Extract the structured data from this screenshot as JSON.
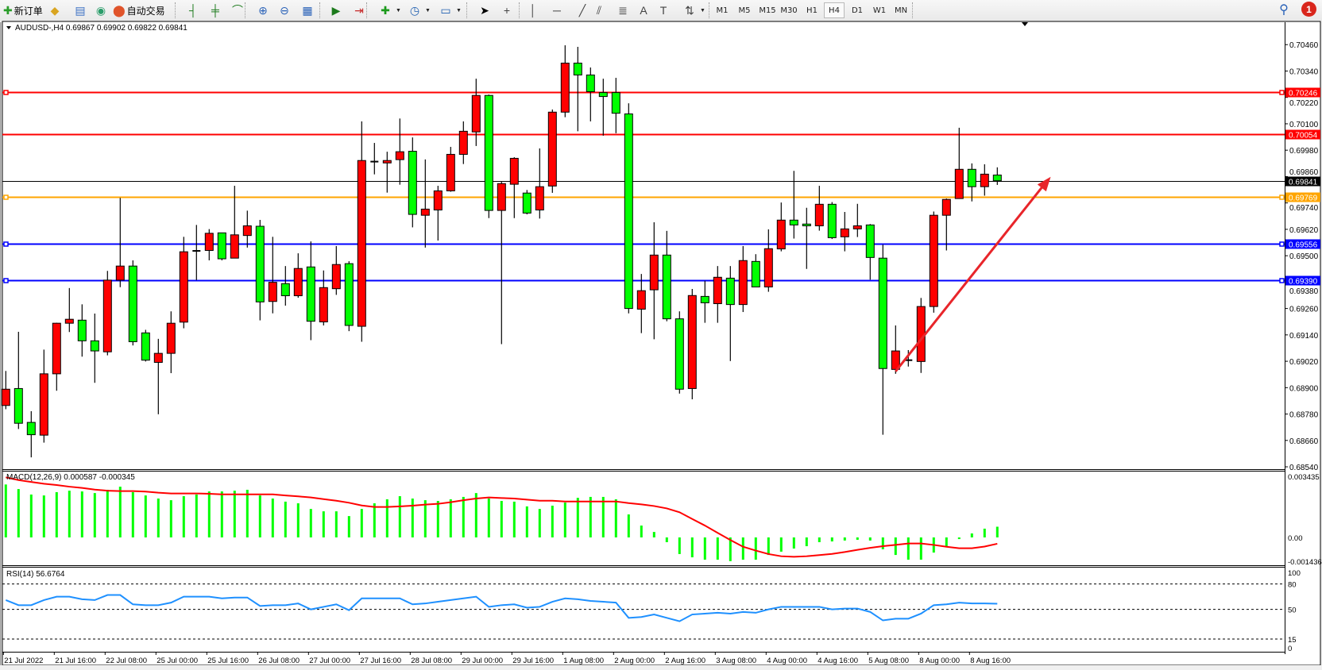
{
  "toolbar": {
    "items": [
      {
        "kind": "icon",
        "icon": "new-order-icon",
        "label": "新订单"
      },
      {
        "kind": "icon",
        "icon": "gold-bar-icon"
      },
      {
        "kind": "icon",
        "icon": "navigator-icon"
      },
      {
        "kind": "icon",
        "icon": "signal-icon"
      },
      {
        "kind": "icon",
        "icon": "auto-trading-icon",
        "label": "自动交易"
      },
      {
        "kind": "sep"
      },
      {
        "kind": "icon",
        "icon": "bar-chart-icon"
      },
      {
        "kind": "icon",
        "icon": "candlestick-chart-icon"
      },
      {
        "kind": "icon",
        "icon": "line-chart-icon"
      },
      {
        "kind": "sep"
      },
      {
        "kind": "icon",
        "icon": "zoom-in-icon"
      },
      {
        "kind": "icon",
        "icon": "zoom-out-icon"
      },
      {
        "kind": "icon",
        "icon": "tile-windows-icon"
      },
      {
        "kind": "sep"
      },
      {
        "kind": "icon",
        "icon": "auto-scroll-icon"
      },
      {
        "kind": "icon",
        "icon": "chart-shift-icon"
      },
      {
        "kind": "sep"
      },
      {
        "kind": "icon",
        "icon": "add-indicator-icon",
        "dropdown": true
      },
      {
        "kind": "icon",
        "icon": "periods-clock-icon",
        "dropdown": true
      },
      {
        "kind": "icon",
        "icon": "templates-icon",
        "dropdown": true
      },
      {
        "kind": "sep"
      },
      {
        "kind": "icon",
        "icon": "cursor-icon"
      },
      {
        "kind": "icon",
        "icon": "crosshair-icon"
      },
      {
        "kind": "sep"
      },
      {
        "kind": "icon",
        "icon": "vertical-line-icon"
      },
      {
        "kind": "icon",
        "icon": "horizontal-line-icon"
      },
      {
        "kind": "icon",
        "icon": "trendline-icon"
      },
      {
        "kind": "icon",
        "icon": "equidistant-channel-icon"
      },
      {
        "kind": "icon",
        "icon": "fibonacci-icon"
      },
      {
        "kind": "icon",
        "icon": "text-icon"
      },
      {
        "kind": "icon",
        "icon": "text-label-icon"
      },
      {
        "kind": "icon",
        "icon": "arrows-icon",
        "dropdown": true
      },
      {
        "kind": "sep"
      }
    ],
    "timeframes": [
      "M1",
      "M5",
      "M15",
      "M30",
      "H1",
      "H4",
      "D1",
      "W1",
      "MN"
    ],
    "active_timeframe": "H4",
    "notification_count": "1"
  },
  "chart": {
    "header": "AUDUSD-,H4  0.69867 0.69902 0.69822 0.69841",
    "colors": {
      "up": "#ff0000",
      "down": "#00ff00",
      "wick": "#000000",
      "macd_hist": "#00ff00",
      "macd_signal": "#ff0000",
      "rsi": "#1e90ff",
      "arrow": "#e8252a"
    },
    "horizontal_lines": [
      {
        "price": "0.70246",
        "value": 0.70246,
        "color": "#ff0000",
        "marker": true,
        "text_color": "#ffffff"
      },
      {
        "price": "0.70054",
        "value": 0.70054,
        "color": "#ff0000",
        "marker": false,
        "text_color": "#ffffff"
      },
      {
        "price": "0.69841",
        "value": 0.69841,
        "color": "#000000",
        "marker": false,
        "thin": true,
        "text_color": "#ffffff"
      },
      {
        "price": "0.69769",
        "value": 0.69769,
        "color": "#ffa500",
        "marker": true,
        "text_color": "#ffffff"
      },
      {
        "price": "0.69556",
        "value": 0.69556,
        "color": "#0000ff",
        "marker": true,
        "text_color": "#ffffff"
      },
      {
        "price": "0.69390",
        "value": 0.6939,
        "color": "#0000ff",
        "marker": true,
        "text_color": "#ffffff"
      }
    ],
    "arrow": {
      "from_bar": 71,
      "from_price": 0.68974,
      "to_bar": 83.2,
      "to_price": 0.69859
    }
  },
  "chart_data": [
    {
      "type": "candlestick",
      "symbol": "AUDUSD-",
      "timeframe": "H4",
      "ylim": [
        0.6854,
        0.7046
      ],
      "yticks": [
        "0.70460",
        "0.70340",
        "0.70220",
        "0.70100",
        "0.69980",
        "0.69860",
        "0.69740",
        "0.69620",
        "0.69500",
        "0.69380",
        "0.69260",
        "0.69140",
        "0.69020",
        "0.68900",
        "0.68780",
        "0.68660",
        "0.68540"
      ],
      "xticks": [
        "21 Jul 2022",
        "21 Jul 16:00",
        "22 Jul 08:00",
        "25 Jul 00:00",
        "25 Jul 16:00",
        "26 Jul 08:00",
        "27 Jul 00:00",
        "27 Jul 16:00",
        "28 Jul 08:00",
        "29 Jul 00:00",
        "29 Jul 16:00",
        "1 Aug 08:00",
        "2 Aug 00:00",
        "2 Aug 16:00",
        "3 Aug 08:00",
        "4 Aug 00:00",
        "4 Aug 16:00",
        "5 Aug 08:00",
        "8 Aug 00:00",
        "8 Aug 16:00"
      ],
      "ohlc": [
        [
          0.68819,
          0.68976,
          0.68802,
          0.68893
        ],
        [
          0.68896,
          0.69154,
          0.68712,
          0.68738
        ],
        [
          0.68742,
          0.68793,
          0.68583,
          0.68686
        ],
        [
          0.68684,
          0.69073,
          0.6865,
          0.68963
        ],
        [
          0.68963,
          0.69195,
          0.68886,
          0.69193
        ],
        [
          0.69193,
          0.69353,
          0.69153,
          0.69211
        ],
        [
          0.69207,
          0.69279,
          0.69041,
          0.69113
        ],
        [
          0.69113,
          0.69237,
          0.68922,
          0.69067
        ],
        [
          0.69063,
          0.69431,
          0.69047,
          0.69389
        ],
        [
          0.69389,
          0.69763,
          0.69357,
          0.69453
        ],
        [
          0.69453,
          0.69479,
          0.69092,
          0.69109
        ],
        [
          0.69149,
          0.69163,
          0.69019,
          0.69025
        ],
        [
          0.69015,
          0.69122,
          0.68779,
          0.69056
        ],
        [
          0.69056,
          0.69247,
          0.68966,
          0.69193
        ],
        [
          0.69198,
          0.69586,
          0.6917,
          0.69518
        ],
        [
          0.69522,
          0.6964,
          0.69389,
          0.69522
        ],
        [
          0.69524,
          0.69621,
          0.69479,
          0.69602
        ],
        [
          0.69604,
          0.69604,
          0.69479,
          0.69486
        ],
        [
          0.69489,
          0.69818,
          0.69489,
          0.69595
        ],
        [
          0.69592,
          0.69705,
          0.69537,
          0.69636
        ],
        [
          0.69634,
          0.69663,
          0.69206,
          0.6929
        ],
        [
          0.69292,
          0.69586,
          0.69238,
          0.69379
        ],
        [
          0.69373,
          0.69453,
          0.69273,
          0.69318
        ],
        [
          0.69318,
          0.69511,
          0.69309,
          0.69442
        ],
        [
          0.69449,
          0.69565,
          0.69116,
          0.69202
        ],
        [
          0.69199,
          0.69433,
          0.69183,
          0.69355
        ],
        [
          0.6935,
          0.69544,
          0.69322,
          0.6946
        ],
        [
          0.69464,
          0.69475,
          0.69157,
          0.69183
        ],
        [
          0.69179,
          0.70111,
          0.69109,
          0.69933
        ],
        [
          0.69928,
          0.70013,
          0.6987,
          0.69928
        ],
        [
          0.69922,
          0.69973,
          0.69787,
          0.69933
        ],
        [
          0.69937,
          0.70124,
          0.69823,
          0.69973
        ],
        [
          0.69975,
          0.70038,
          0.69629,
          0.69688
        ],
        [
          0.69684,
          0.69938,
          0.69537,
          0.69712
        ],
        [
          0.69708,
          0.69818,
          0.69569,
          0.69795
        ],
        [
          0.69795,
          0.69995,
          0.69791,
          0.69961
        ],
        [
          0.69961,
          0.70111,
          0.69917,
          0.70066
        ],
        [
          0.70063,
          0.70305,
          0.69999,
          0.70229
        ],
        [
          0.70229,
          0.70233,
          0.69671,
          0.69706
        ],
        [
          0.69706,
          0.69836,
          0.69098,
          0.69828
        ],
        [
          0.69825,
          0.69948,
          0.69671,
          0.69943
        ],
        [
          0.69785,
          0.69799,
          0.69688,
          0.69694
        ],
        [
          0.69708,
          0.69988,
          0.69669,
          0.69814
        ],
        [
          0.69817,
          0.70165,
          0.69786,
          0.70153
        ],
        [
          0.70153,
          0.70457,
          0.7013,
          0.70376
        ],
        [
          0.70376,
          0.7045,
          0.70066,
          0.70322
        ],
        [
          0.70322,
          0.70356,
          0.70111,
          0.70246
        ],
        [
          0.70242,
          0.70305,
          0.70046,
          0.70224
        ],
        [
          0.70242,
          0.70309,
          0.70057,
          0.70148
        ],
        [
          0.70145,
          0.70193,
          0.69238,
          0.6926
        ],
        [
          0.69257,
          0.69417,
          0.69148,
          0.69341
        ],
        [
          0.69345,
          0.69652,
          0.6912,
          0.69503
        ],
        [
          0.69503,
          0.69613,
          0.69202,
          0.69213
        ],
        [
          0.69213,
          0.69247,
          0.68873,
          0.68893
        ],
        [
          0.68896,
          0.69349,
          0.68847,
          0.69319
        ],
        [
          0.69315,
          0.69386,
          0.69195,
          0.69286
        ],
        [
          0.69282,
          0.69453,
          0.69195,
          0.69402
        ],
        [
          0.69398,
          0.69453,
          0.69021,
          0.69278
        ],
        [
          0.69278,
          0.69544,
          0.69244,
          0.69478
        ],
        [
          0.69474,
          0.69507,
          0.69358,
          0.69358
        ],
        [
          0.69358,
          0.6962,
          0.69336,
          0.69532
        ],
        [
          0.69531,
          0.69742,
          0.6952,
          0.69662
        ],
        [
          0.69662,
          0.69886,
          0.69578,
          0.6964
        ],
        [
          0.69644,
          0.69718,
          0.6944,
          0.69636
        ],
        [
          0.69636,
          0.69818,
          0.69614,
          0.69734
        ],
        [
          0.69734,
          0.69744,
          0.69576,
          0.69582
        ],
        [
          0.69586,
          0.69699,
          0.6952,
          0.69622
        ],
        [
          0.69622,
          0.69736,
          0.69585,
          0.69636
        ],
        [
          0.6964,
          0.69644,
          0.69391,
          0.69492
        ],
        [
          0.69489,
          0.6955,
          0.68686,
          0.68987
        ],
        [
          0.68983,
          0.69183,
          0.68963,
          0.69067
        ],
        [
          0.69025,
          0.69071,
          0.68996,
          0.69025
        ],
        [
          0.69019,
          0.69308,
          0.68967,
          0.69269
        ],
        [
          0.69269,
          0.69701,
          0.69241,
          0.69684
        ],
        [
          0.69684,
          0.6976,
          0.69524,
          0.69756
        ],
        [
          0.6976,
          0.70082,
          0.6976,
          0.69893
        ],
        [
          0.69893,
          0.6992,
          0.69747,
          0.69814
        ],
        [
          0.69814,
          0.69916,
          0.69773,
          0.69871
        ],
        [
          0.69867,
          0.69902,
          0.69822,
          0.69841
        ]
      ]
    },
    {
      "type": "bar+line",
      "label": "MACD(12,26,9) 0.000587 -0.000345",
      "ylim": [
        -0.001436,
        0.003435
      ],
      "yticks": [
        "0.003435",
        "0.00",
        "-0.001436"
      ],
      "histogram": [
        0.0029,
        0.00265,
        0.00235,
        0.0023,
        0.00248,
        0.00256,
        0.00252,
        0.00243,
        0.00261,
        0.00278,
        0.00248,
        0.0023,
        0.00213,
        0.00204,
        0.00226,
        0.00235,
        0.00252,
        0.00252,
        0.00256,
        0.00261,
        0.0023,
        0.00213,
        0.00196,
        0.00187,
        0.00156,
        0.00143,
        0.00143,
        0.00117,
        0.00156,
        0.00187,
        0.00209,
        0.00226,
        0.00213,
        0.00204,
        0.002,
        0.00209,
        0.00222,
        0.00243,
        0.00213,
        0.002,
        0.00196,
        0.0017,
        0.00156,
        0.00174,
        0.00191,
        0.00217,
        0.00222,
        0.00222,
        0.00209,
        0.00126,
        0.00065,
        0.0003,
        -0.00026,
        -0.00091,
        -0.00109,
        -0.00122,
        -0.00122,
        -0.0013,
        -0.00122,
        -0.00122,
        -0.00096,
        -0.00078,
        -0.00061,
        -0.00048,
        -0.00026,
        -0.00022,
        -0.00017,
        -0.00013,
        -0.00017,
        -0.00065,
        -0.00096,
        -0.00122,
        -0.00122,
        -0.00083,
        -0.00048,
        -9e-05,
        0.00022,
        0.00048,
        0.000587
      ],
      "signal": [
        0.00329,
        0.00314,
        0.00304,
        0.00294,
        0.00287,
        0.00278,
        0.00271,
        0.00262,
        0.00256,
        0.00254,
        0.00254,
        0.00251,
        0.00245,
        0.00241,
        0.00241,
        0.00241,
        0.00239,
        0.00236,
        0.00236,
        0.00236,
        0.00236,
        0.00236,
        0.0023,
        0.00225,
        0.00219,
        0.0021,
        0.00201,
        0.0019,
        0.00175,
        0.00167,
        0.00167,
        0.0017,
        0.00174,
        0.0018,
        0.00184,
        0.00193,
        0.00204,
        0.00213,
        0.00219,
        0.00216,
        0.00213,
        0.00207,
        0.00201,
        0.00201,
        0.00197,
        0.00197,
        0.00197,
        0.00197,
        0.00197,
        0.00188,
        0.00181,
        0.00172,
        0.00159,
        0.00138,
        0.00101,
        0.00065,
        0.00025,
        -0.00014,
        -0.00051,
        -0.00072,
        -0.00091,
        -0.00103,
        -0.00106,
        -0.00103,
        -0.00097,
        -0.0009,
        -0.0008,
        -0.00068,
        -0.00057,
        -0.00048,
        -0.00041,
        -0.00033,
        -0.00033,
        -0.00041,
        -0.00051,
        -0.00059,
        -0.00059,
        -0.0005,
        -0.000345
      ]
    },
    {
      "type": "line",
      "label": "RSI(14) 56.6764",
      "ylim": [
        0,
        100
      ],
      "yticks": [
        "100",
        "80",
        "50",
        "15",
        "0"
      ],
      "levels": [
        80,
        50,
        15
      ],
      "values": [
        61,
        55,
        55,
        61,
        65,
        65,
        62,
        61,
        67,
        67,
        56,
        55,
        55,
        58,
        65,
        65,
        65,
        63,
        64,
        64,
        54,
        55,
        55,
        57,
        50,
        53,
        56,
        49,
        63,
        63,
        63,
        63,
        56,
        57,
        59,
        61,
        63,
        65,
        53,
        55,
        56,
        52,
        53,
        59,
        63,
        62,
        60,
        59,
        58,
        40,
        41,
        44,
        40,
        36,
        44,
        45,
        46,
        45,
        47,
        46,
        50,
        53,
        53,
        53,
        53,
        50,
        51,
        51,
        47,
        37,
        39,
        39,
        45,
        55,
        56,
        58,
        57,
        57,
        56.68
      ]
    }
  ]
}
